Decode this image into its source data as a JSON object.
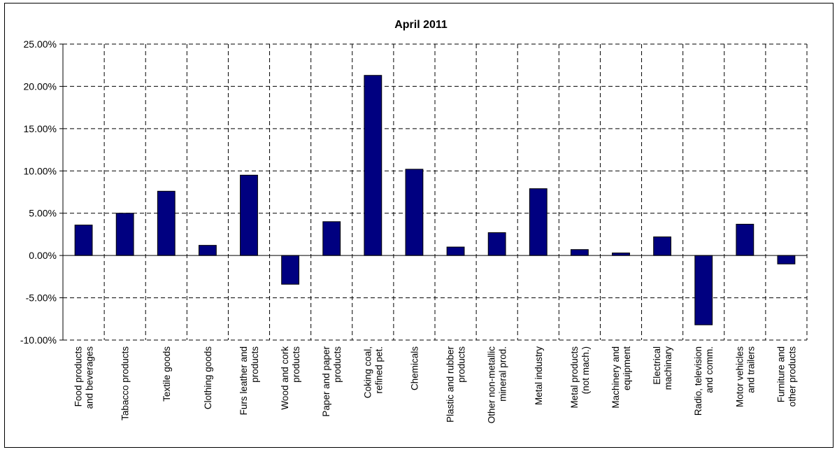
{
  "chart_data": {
    "type": "bar",
    "title": "April 2011",
    "xlabel": "",
    "ylabel": "",
    "ylim": [
      -10,
      25
    ],
    "y_ticks": [
      "25.00%",
      "20.00%",
      "15.00%",
      "10.00%",
      "5.00%",
      "0.00%",
      "-5.00%",
      "-10.00%"
    ],
    "y_tick_values": [
      25,
      20,
      15,
      10,
      5,
      0,
      -5,
      -10
    ],
    "grid": true,
    "bar_color": "#000080",
    "categories": [
      [
        "Food products",
        "and beverages"
      ],
      [
        "Tabacco products"
      ],
      [
        "Textile goods"
      ],
      [
        "Clothing goods"
      ],
      [
        "Furs leather and",
        "products"
      ],
      [
        "Wood and cork",
        "products"
      ],
      [
        "Paper and paper",
        "products"
      ],
      [
        "Coking coal,",
        "refined pet."
      ],
      [
        "Chemicals"
      ],
      [
        "Plastic and rubber",
        "products"
      ],
      [
        "Other non-metallic",
        "mineral prod."
      ],
      [
        "Metal industry"
      ],
      [
        "Metal products",
        "(not mach.)"
      ],
      [
        "Machinery and",
        "equipment"
      ],
      [
        "Electrical",
        "machinary"
      ],
      [
        "Radio, television",
        "and comm."
      ],
      [
        "Motor vehicles",
        "and trailers"
      ],
      [
        "Furniture and",
        "other products"
      ]
    ],
    "values": [
      3.6,
      5.0,
      7.6,
      1.2,
      9.5,
      -3.4,
      4.0,
      21.3,
      10.2,
      1.0,
      2.7,
      7.9,
      0.7,
      0.3,
      2.2,
      -8.2,
      3.7,
      -1.0
    ]
  }
}
